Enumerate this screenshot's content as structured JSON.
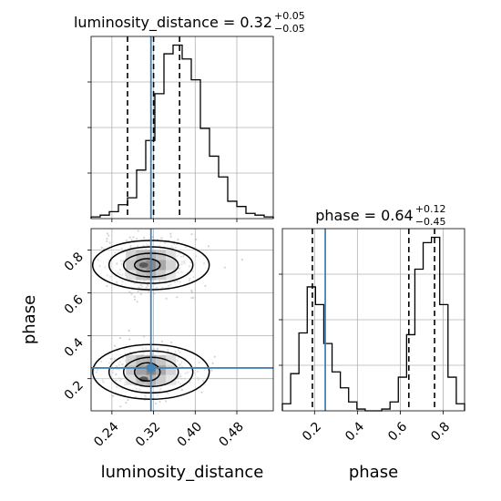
{
  "chart_data": {
    "type": "corner",
    "colors": {
      "hist": "#000000",
      "truth": "#4682b4",
      "quantile": "#000000",
      "grid": "#b0b0b0",
      "points": "#a0a0a0"
    },
    "grid": true,
    "parameters": [
      {
        "name": "luminosity_distance",
        "range": [
          0.2,
          0.55
        ],
        "ticks": [
          0.24,
          0.32,
          0.4,
          0.48
        ],
        "tick_labels": [
          "0.24",
          "0.32",
          "0.40",
          "0.48"
        ],
        "truth": 0.315,
        "quantiles": [
          0.27,
          0.32,
          0.37
        ],
        "title_main": "luminosity_distance = 0.32",
        "title_sup": "+0.05",
        "title_sub": "−0.05",
        "label": "luminosity_distance",
        "hist": [
          0.01,
          0.02,
          0.04,
          0.08,
          0.12,
          0.28,
          0.45,
          0.72,
          0.95,
          1.0,
          0.92,
          0.8,
          0.52,
          0.36,
          0.24,
          0.1,
          0.07,
          0.03,
          0.02,
          0.01
        ]
      },
      {
        "name": "phase",
        "range": [
          0.05,
          0.9
        ],
        "ticks": [
          0.2,
          0.4,
          0.6,
          0.8
        ],
        "tick_labels": [
          "0.2",
          "0.4",
          "0.6",
          "0.8"
        ],
        "truth": 0.25,
        "quantiles": [
          0.19,
          0.64,
          0.76
        ],
        "title_main": "phase = 0.64",
        "title_sup": "+0.12",
        "title_sub": "−0.45",
        "label": "phase",
        "hist": [
          0.04,
          0.21,
          0.44,
          0.7,
          0.6,
          0.38,
          0.22,
          0.13,
          0.05,
          0.01,
          0.0,
          0.0,
          0.01,
          0.05,
          0.19,
          0.43,
          0.8,
          0.95,
          0.98,
          0.6,
          0.19,
          0.04
        ]
      }
    ],
    "scatter": {
      "y_ticks": [
        0.2,
        0.4,
        0.6,
        0.8
      ],
      "y_tick_labels": [
        "0.2",
        "0.4",
        "0.6",
        "0.8"
      ],
      "modes": [
        {
          "x": 0.315,
          "y": 0.73,
          "weight": 0.55
        },
        {
          "x": 0.315,
          "y": 0.24,
          "weight": 0.45
        }
      ]
    }
  }
}
